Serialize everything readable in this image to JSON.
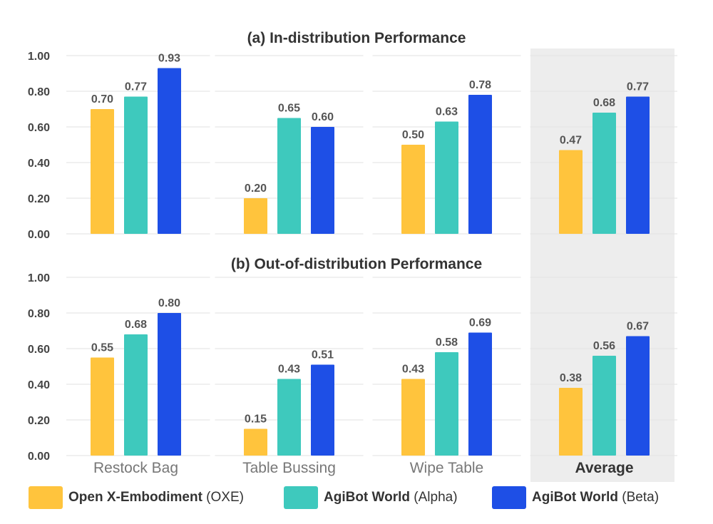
{
  "chart_data": [
    {
      "type": "bar",
      "title": "(a) In-distribution Performance",
      "categories": [
        "Restock Bag",
        "Table Bussing",
        "Wipe Table",
        "Average"
      ],
      "series": [
        {
          "name": "Open X-Embodiment (OXE)",
          "values": [
            0.7,
            0.2,
            0.5,
            0.47
          ]
        },
        {
          "name": "AgiBot World (Alpha)",
          "values": [
            0.77,
            0.65,
            0.63,
            0.68
          ]
        },
        {
          "name": "AgiBot World (Beta)",
          "values": [
            0.93,
            0.6,
            0.78,
            0.77
          ]
        }
      ],
      "value_labels": [
        [
          "0.70",
          "0.20",
          "0.50",
          "0.47"
        ],
        [
          "0.77",
          "0.65",
          "0.63",
          "0.68"
        ],
        [
          "0.93",
          "0.60",
          "0.78",
          "0.77"
        ]
      ],
      "ylim": [
        0,
        1
      ],
      "yticks": [
        "0.00",
        "0.20",
        "0.40",
        "0.60",
        "0.80",
        "1.00"
      ],
      "xlabel": "",
      "ylabel": "",
      "grid": true
    },
    {
      "type": "bar",
      "title": "(b) Out-of-distribution Performance",
      "categories": [
        "Restock Bag",
        "Table Bussing",
        "Wipe Table",
        "Average"
      ],
      "series": [
        {
          "name": "Open X-Embodiment (OXE)",
          "values": [
            0.55,
            0.15,
            0.43,
            0.38
          ]
        },
        {
          "name": "AgiBot World (Alpha)",
          "values": [
            0.68,
            0.43,
            0.58,
            0.56
          ]
        },
        {
          "name": "AgiBot World (Beta)",
          "values": [
            0.8,
            0.51,
            0.69,
            0.67
          ]
        }
      ],
      "value_labels": [
        [
          "0.55",
          "0.15",
          "0.43",
          "0.38"
        ],
        [
          "0.68",
          "0.43",
          "0.58",
          "0.56"
        ],
        [
          "0.80",
          "0.51",
          "0.69",
          "0.67"
        ]
      ],
      "ylim": [
        0,
        1
      ],
      "yticks": [
        "0.00",
        "0.20",
        "0.40",
        "0.60",
        "0.80",
        "1.00"
      ],
      "xlabel": "",
      "ylabel": "",
      "grid": true
    }
  ],
  "colors": {
    "oxe": "#FFC43D",
    "alpha": "#3EC9BD",
    "beta": "#1E4FE6",
    "average_bg": "#EDEDED",
    "grid": "#E6E6E6",
    "text": "#444444",
    "category_text": "#777777"
  },
  "legend": [
    {
      "bold": "Open X-Embodiment",
      "rest": " (OXE)"
    },
    {
      "bold": "AgiBot World",
      "rest": " (Alpha)"
    },
    {
      "bold": "AgiBot World",
      "rest": " (Beta)"
    }
  ]
}
